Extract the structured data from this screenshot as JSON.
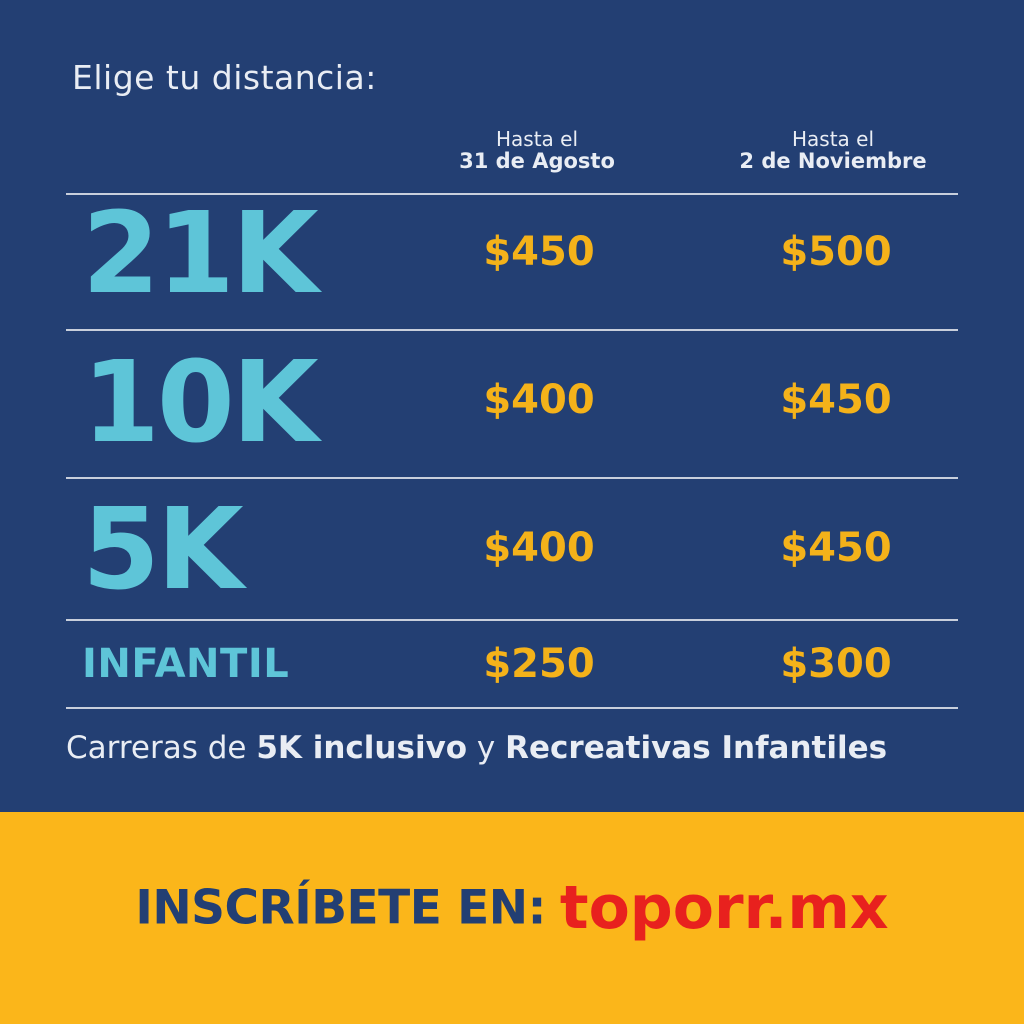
{
  "heading": "Elige tu distancia:",
  "columns": [
    {
      "line1": "Hasta el",
      "line2": "31 de Agosto"
    },
    {
      "line1": "Hasta el",
      "line2": "2 de Noviembre"
    }
  ],
  "rows": [
    {
      "distance": "21K",
      "price_a": "$450",
      "price_b": "$500"
    },
    {
      "distance": "10K",
      "price_a": "$400",
      "price_b": "$450"
    },
    {
      "distance": "5K",
      "price_a": "$400",
      "price_b": "$450"
    },
    {
      "distance": "INFANTIL",
      "price_a": "$250",
      "price_b": "$300"
    }
  ],
  "note": {
    "prefix": "Carreras de ",
    "bold1": "5K inclusivo",
    "middle": " y ",
    "bold2": "Recreativas Infantiles"
  },
  "cta": {
    "label": "INSCRÍBETE EN:",
    "url": "toporr.mx"
  },
  "colors": {
    "background": "#233f73",
    "distance": "#5ec5d8",
    "price": "#f4b21a",
    "banner": "#fbb61a",
    "url": "#e8211e"
  }
}
